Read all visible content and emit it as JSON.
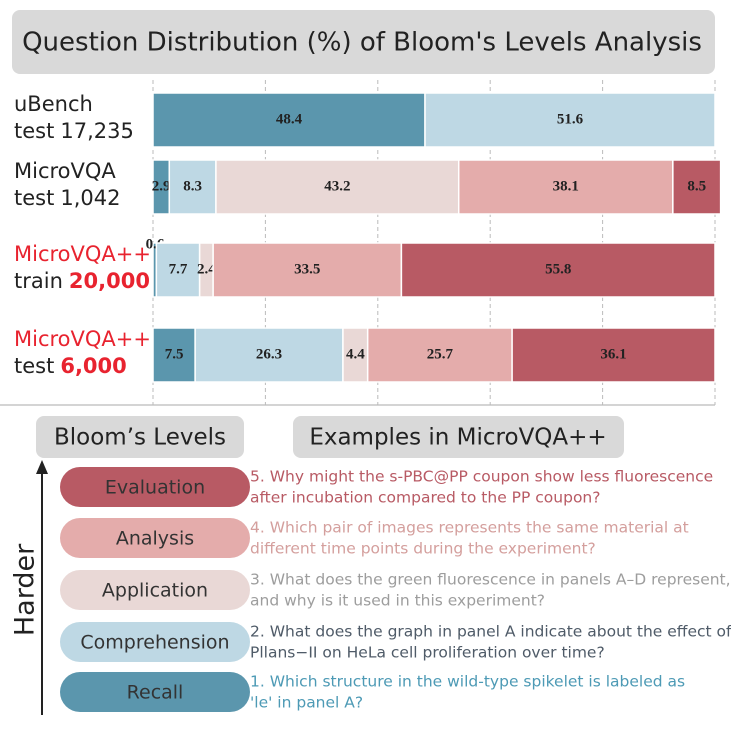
{
  "chart_data": {
    "type": "stacked-barh",
    "title": "Question Distribution (%) of Bloom's Levels Analysis",
    "categories": [
      "uBench",
      "MicroVQA",
      "MicroVQA++",
      "MicroVQA++"
    ],
    "splits": [
      "test",
      "test",
      "train",
      "test"
    ],
    "sizes": [
      "17,235",
      "1,042",
      "20,000",
      "6,000"
    ],
    "highlight": [
      false,
      false,
      true,
      true
    ],
    "highlight_color": "#e8232f",
    "series": [
      {
        "name": "Recall",
        "color": "#5b96ad",
        "values": [
          48.4,
          2.9,
          0.6,
          7.5
        ]
      },
      {
        "name": "Comprehension",
        "color": "#bed8e4",
        "values": [
          51.6,
          8.3,
          7.7,
          26.3
        ]
      },
      {
        "name": "Application",
        "color": "#e9d8d6",
        "values": [
          null,
          43.2,
          2.4,
          4.4
        ]
      },
      {
        "name": "Analysis",
        "color": "#e4acab",
        "values": [
          null,
          38.1,
          33.5,
          25.7
        ]
      },
      {
        "name": "Evaluation",
        "color": "#b85a64",
        "values": [
          null,
          8.5,
          55.8,
          36.1
        ]
      }
    ],
    "xlim": [
      0,
      100
    ],
    "xticks": [
      0,
      20,
      40,
      60,
      80,
      100
    ],
    "grid": true,
    "legend_title": "Bloom’s Levels",
    "axis_label": "Harder",
    "examples_title": "Examples in MicroVQA++",
    "examples": [
      {
        "color": "#b85a64",
        "lines": [
          "5. Why might the s-PBC@PP coupon show less fluorescence",
          "after incubation compared to the PP coupon?"
        ]
      },
      {
        "color": "#d49f9d",
        "lines": [
          "4. Which pair of images represents the same material at",
          "different time points during the experiment?"
        ]
      },
      {
        "color": "#9d9d9d",
        "lines": [
          "3. What does the green fluorescence in panels A–D represent,",
          "and why is it used in this experiment?"
        ]
      },
      {
        "color": "#4f5b68",
        "lines": [
          "2. What does the graph in panel A indicate about the effect of",
          "Pllans−II on HeLa cell proliferation over time?"
        ]
      },
      {
        "color": "#4d9ab5",
        "lines": [
          "1. Which structure in the wild-type spikelet is labeled as",
          " 'le' in panel A?"
        ]
      }
    ]
  }
}
